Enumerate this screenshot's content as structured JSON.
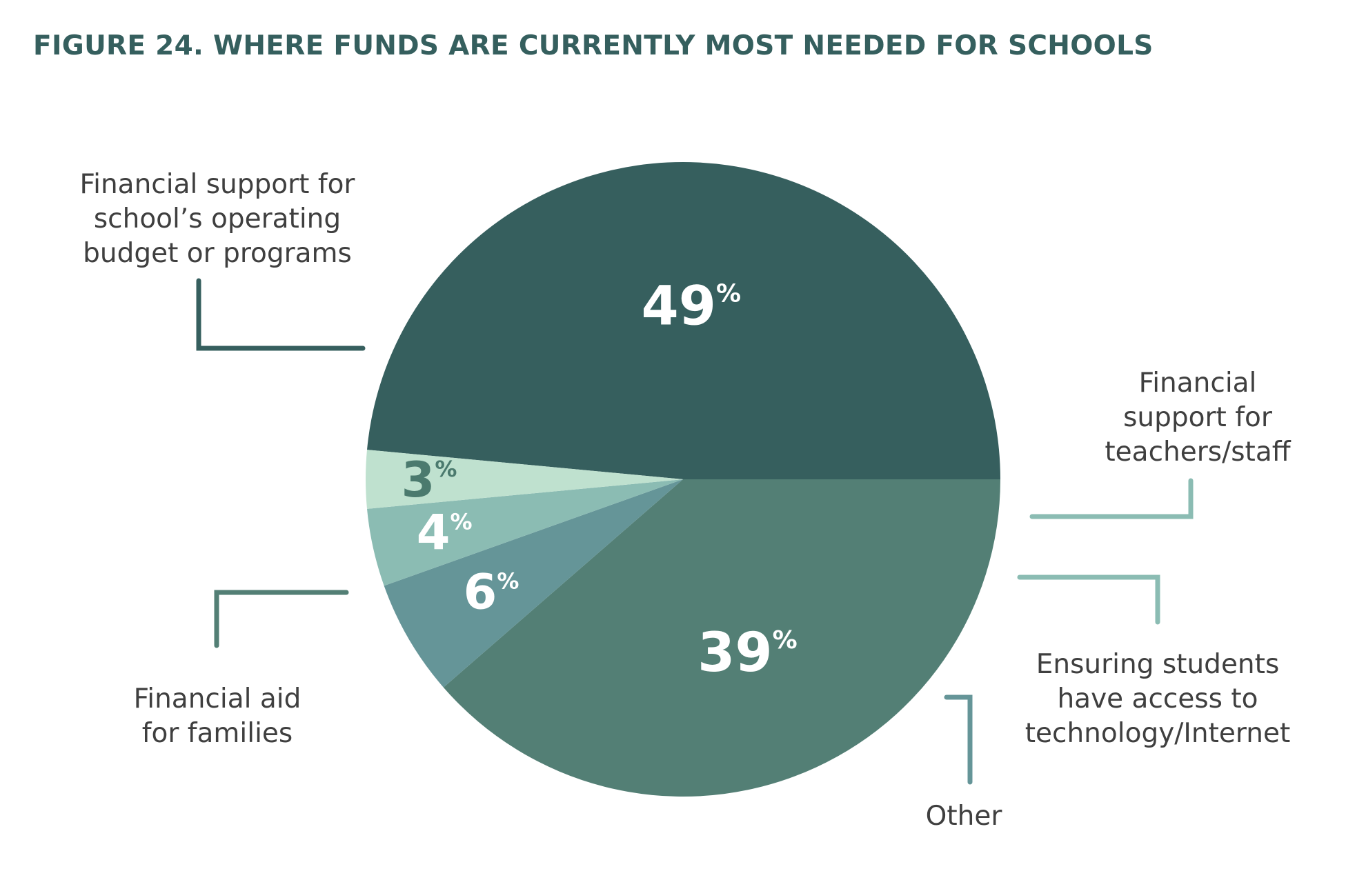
{
  "title": "FIGURE 24. WHERE FUNDS ARE CURRENTLY MOST NEEDED FOR SCHOOLS",
  "colors": {
    "title": "#355f5e",
    "callout_text": "#3f3f3f",
    "background": "#ffffff"
  },
  "chart_data": {
    "type": "pie",
    "title": "FIGURE 24. WHERE FUNDS ARE CURRENTLY MOST NEEDED FOR SCHOOLS",
    "unit": "%",
    "slices": [
      {
        "name": "Financial support for school’s operating budget or programs",
        "label_lines": [
          "Financial support for",
          "school’s operating",
          "budget or programs"
        ],
        "value": 49,
        "value_label": "49",
        "color": "#365f5e",
        "value_color": "#ffffff",
        "leader_color": "#365f5e"
      },
      {
        "name": "Financial aid for families",
        "label_lines": [
          "Financial aid",
          "for families"
        ],
        "value": 39,
        "value_label": "39",
        "color": "#537f75",
        "value_color": "#ffffff",
        "leader_color": "#537f75"
      },
      {
        "name": "Other",
        "label_lines": [
          "Other"
        ],
        "value": 6,
        "value_label": "6",
        "color": "#659598",
        "value_color": "#ffffff",
        "leader_color": "#659598"
      },
      {
        "name": "Ensuring students have access to technology/Internet",
        "label_lines": [
          "Ensuring students",
          "have access to",
          "technology/Internet"
        ],
        "value": 4,
        "value_label": "4",
        "color": "#8bbcb3",
        "value_color": "#ffffff",
        "leader_color": "#8bbcb3"
      },
      {
        "name": "Financial support for teachers/staff",
        "label_lines": [
          "Financial",
          "support for",
          "teachers/staff"
        ],
        "value": 3,
        "value_label": "3",
        "color": "#bfe1cf",
        "value_color": "#4b7a6e",
        "leader_color": "#8bbcb3"
      }
    ]
  }
}
